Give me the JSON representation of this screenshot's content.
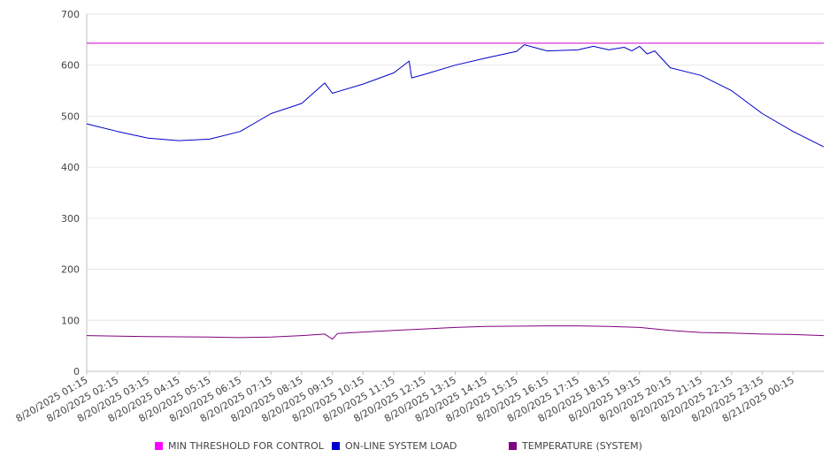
{
  "chart_data": {
    "type": "line",
    "title": "",
    "xlabel": "",
    "ylabel": "",
    "ylim": [
      0,
      700
    ],
    "yticks": [
      0,
      100,
      200,
      300,
      400,
      500,
      600,
      700
    ],
    "grid": true,
    "legend_position": "bottom",
    "x_tick_labels": [
      "8/20/2025 01:15",
      "8/20/2025 02:15",
      "8/20/2025 03:15",
      "8/20/2025 04:15",
      "8/20/2025 05:15",
      "8/20/2025 06:15",
      "8/20/2025 07:15",
      "8/20/2025 08:15",
      "8/20/2025 09:15",
      "8/20/2025 10:15",
      "8/20/2025 11:15",
      "8/20/2025 12:15",
      "8/20/2025 13:15",
      "8/20/2025 14:15",
      "8/20/2025 15:15",
      "8/20/2025 16:15",
      "8/20/2025 17:15",
      "8/20/2025 18:15",
      "8/20/2025 19:15",
      "8/20/2025 20:15",
      "8/20/2025 21:15",
      "8/20/2025 22:15",
      "8/20/2025 23:15",
      "8/21/2025 00:15"
    ],
    "x_range": [
      "8/20/2025 01:15",
      "8/21/2025 01:15"
    ],
    "series": [
      {
        "name": "MIN THRESHOLD FOR CONTROL",
        "color": "#cc00cc",
        "x": [
          "8/20/2025 01:15",
          "8/21/2025 01:15"
        ],
        "values": [
          643,
          643
        ]
      },
      {
        "name": "ON-LINE SYSTEM LOAD",
        "color": "#0000cc",
        "x": [
          "8/20/2025 01:15",
          "8/20/2025 02:15",
          "8/20/2025 03:15",
          "8/20/2025 04:15",
          "8/20/2025 05:15",
          "8/20/2025 06:15",
          "8/20/2025 07:15",
          "8/20/2025 08:15",
          "8/20/2025 09:00",
          "8/20/2025 09:15",
          "8/20/2025 10:15",
          "8/20/2025 11:15",
          "8/20/2025 11:45",
          "8/20/2025 11:50",
          "8/20/2025 12:15",
          "8/20/2025 13:15",
          "8/20/2025 14:15",
          "8/20/2025 15:15",
          "8/20/2025 15:30",
          "8/20/2025 16:15",
          "8/20/2025 17:15",
          "8/20/2025 17:45",
          "8/20/2025 18:15",
          "8/20/2025 18:45",
          "8/20/2025 19:00",
          "8/20/2025 19:15",
          "8/20/2025 19:30",
          "8/20/2025 19:45",
          "8/20/2025 20:15",
          "8/20/2025 21:15",
          "8/20/2025 22:15",
          "8/20/2025 23:15",
          "8/21/2025 00:15",
          "8/21/2025 01:15"
        ],
        "values": [
          485,
          470,
          457,
          452,
          455,
          470,
          505,
          525,
          565,
          545,
          563,
          585,
          608,
          575,
          582,
          600,
          614,
          627,
          640,
          628,
          630,
          637,
          630,
          635,
          628,
          637,
          622,
          628,
          595,
          580,
          550,
          505,
          470,
          440
        ]
      },
      {
        "name": "TEMPERATURE (SYSTEM)",
        "color": "#800080",
        "x": [
          "8/20/2025 01:15",
          "8/20/2025 03:15",
          "8/20/2025 05:15",
          "8/20/2025 06:15",
          "8/20/2025 07:15",
          "8/20/2025 08:15",
          "8/20/2025 09:00",
          "8/20/2025 09:15",
          "8/20/2025 09:25",
          "8/20/2025 10:15",
          "8/20/2025 11:15",
          "8/20/2025 12:15",
          "8/20/2025 13:15",
          "8/20/2025 14:15",
          "8/20/2025 16:15",
          "8/20/2025 17:15",
          "8/20/2025 18:15",
          "8/20/2025 19:15",
          "8/20/2025 20:15",
          "8/20/2025 21:15",
          "8/20/2025 22:15",
          "8/20/2025 23:15",
          "8/21/2025 00:15",
          "8/21/2025 01:15"
        ],
        "values": [
          70,
          68,
          67,
          66,
          67,
          70,
          73,
          63,
          74,
          77,
          80,
          83,
          86,
          88,
          89,
          89,
          88,
          86,
          80,
          76,
          75,
          73,
          72,
          70
        ]
      }
    ]
  }
}
